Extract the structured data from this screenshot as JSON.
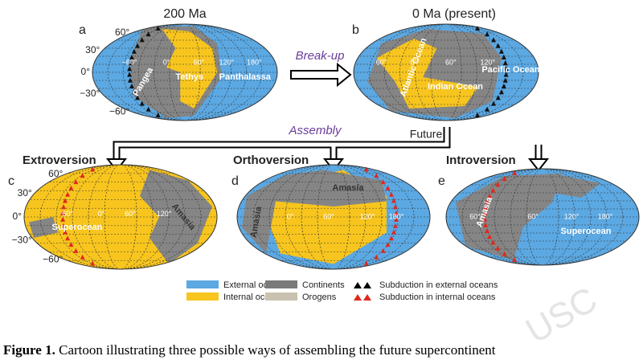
{
  "panels": [
    {
      "letter": "a",
      "title": "200 Ma",
      "lat_labels": [
        "60°",
        "30°",
        "0°",
        "−30°",
        "−60°"
      ],
      "lon_labels": [
        "−60°",
        "0°",
        "60°",
        "120°",
        "180°"
      ],
      "regions": [
        "Pangea",
        "Tethys",
        "Panthalassa"
      ]
    },
    {
      "letter": "b",
      "title": "0 Ma (present)",
      "lon_labels": [
        "60°",
        "0°",
        "60°",
        "120°"
      ],
      "regions": [
        "Atlantic Ocean",
        "Indian Ocean",
        "Pacific Ocean"
      ]
    },
    {
      "letter": "c",
      "title": "Extroversion",
      "lat_labels": [
        "60°",
        "30°",
        "0°",
        "−30°",
        "−60°"
      ],
      "lon_labels": [
        "60°",
        "0°",
        "60°",
        "120°"
      ],
      "regions": [
        "Superocean",
        "Amasia"
      ]
    },
    {
      "letter": "d",
      "title": "Orthoversion",
      "lon_labels": [
        "0°",
        "60°",
        "120°",
        "180°"
      ],
      "regions": [
        "Amasia",
        "Amasia"
      ]
    },
    {
      "letter": "e",
      "title": "Introversion",
      "lon_labels": [
        "60°",
        "60°",
        "120°",
        "180°"
      ],
      "regions": [
        "Amasia",
        "Superocean"
      ]
    }
  ],
  "arrows": {
    "breakup": "Break-up",
    "assembly": "Assembly",
    "future": "Future"
  },
  "legend": [
    "External oceans",
    "Internal oceans",
    "Continents",
    "Orogens",
    "Subduction in external oceans",
    "Subduction in internal oceans"
  ],
  "caption": {
    "label": "Figure 1.",
    "text": " Cartoon illustrating three possible ways of assembling the future supercontinent"
  },
  "watermark": "USC"
}
